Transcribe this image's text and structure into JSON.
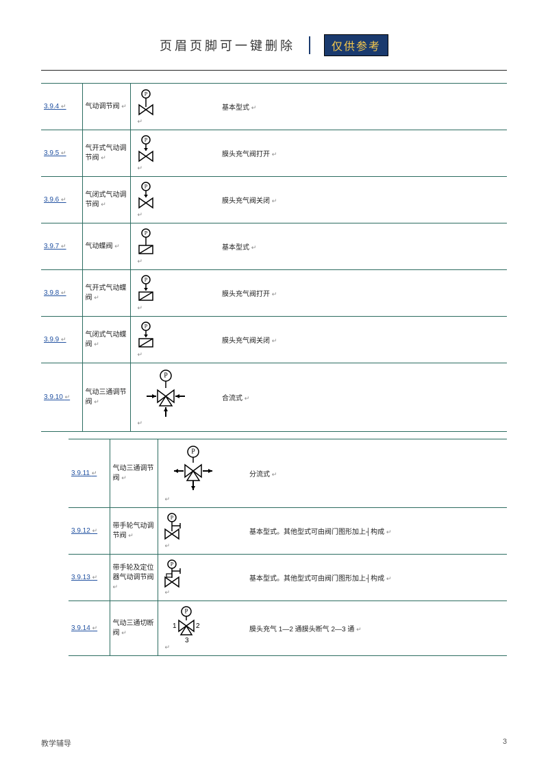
{
  "header": {
    "title": "页眉页脚可一键删除",
    "badge": "仅供参考"
  },
  "rows": [
    {
      "id": "3.9.4",
      "name": "气动调节阀",
      "symbol": "p-bowtie",
      "desc": "基本型式"
    },
    {
      "id": "3.9.5",
      "name": "气开式气动调节阀",
      "symbol": "p-arrow-bowtie-open",
      "desc": "膜头充气阀打开"
    },
    {
      "id": "3.9.6",
      "name": "气闭式气动调节阀",
      "symbol": "p-arrow-bowtie-close",
      "desc": "膜头充气阀关闭"
    },
    {
      "id": "3.9.7",
      "name": "气动蝶阀",
      "symbol": "p-butterfly",
      "desc": "基本型式"
    },
    {
      "id": "3.9.8",
      "name": "气开式气动蝶阀",
      "symbol": "p-arrow-butterfly-open",
      "desc": "膜头充气阀打开"
    },
    {
      "id": "3.9.9",
      "name": "气闭式气动蝶阀",
      "symbol": "p-arrow-butterfly-close",
      "desc": "膜头充气阀关闭"
    },
    {
      "id": "3.9.10",
      "name": "气动三通调节阀",
      "symbol": "p-three-way-merge",
      "desc": "合流式",
      "tall": true
    }
  ],
  "rows2": [
    {
      "id": "3.9.11",
      "name": "气动三通调节阀",
      "symbol": "p-three-way-split",
      "desc": "分流式",
      "tall": true
    },
    {
      "id": "3.9.12",
      "name": "带手轮气动调节阀",
      "symbol": "p-handwheel",
      "desc": "基本型式。其他型式可由阀门图形加上┤构成"
    },
    {
      "id": "3.9.13",
      "name": "带手轮及定位器气动调节阀",
      "symbol": "p-handwheel-pos",
      "desc": "基本型式。其他型式可由阀门图形加上┤构成"
    },
    {
      "id": "3.9.14",
      "name": "气动三通切断阀",
      "symbol": "p-three-cut",
      "desc": "膜头充气 1—2 通膜头断气 2—3 通",
      "labels": [
        "1",
        "2",
        "3"
      ]
    }
  ],
  "footer": {
    "left": "教学辅导",
    "page": "3"
  },
  "colors": {
    "border": "#2a6b5f",
    "link": "#2050a0",
    "badge_bg": "#1a3a6e",
    "badge_fg": "#f5c84c"
  }
}
